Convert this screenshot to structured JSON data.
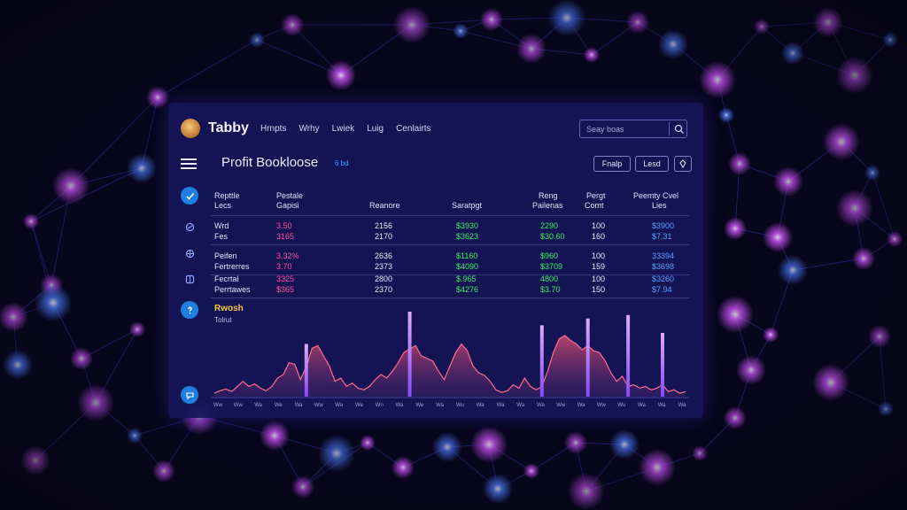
{
  "header": {
    "brand": "Tabby",
    "nav": [
      "Hrnpts",
      "Wrhy",
      "Lwiek",
      "Luig",
      "Cenlairts"
    ],
    "search_placeholder": "Seay boas"
  },
  "page": {
    "title": "Profit Bookloose",
    "title_badge": "6 bd",
    "buttons": [
      "Fnalp",
      "Lesd"
    ]
  },
  "table": {
    "columns": [
      [
        "Repttle",
        "Lecs"
      ],
      [
        "Pestale",
        "Gapisi"
      ],
      [
        "",
        "Reanore"
      ],
      [
        "",
        "Saratpgt"
      ],
      [
        "Reng",
        "Pailenas"
      ],
      [
        "Pergt",
        "Comt"
      ],
      [
        "Peemty Cvel",
        "Lies"
      ]
    ],
    "row_pairs": [
      [
        [
          "Wrd",
          "3.50",
          "2156",
          "$3930",
          "2290",
          "100",
          "$3900"
        ],
        [
          "Fes",
          "3165",
          "2170",
          "$3623",
          "$30.60",
          "160",
          "$7.31"
        ]
      ],
      [
        [
          "Peifen",
          "3.32%",
          "2636",
          "$1160",
          "$960",
          "100",
          "33394"
        ],
        [
          "Fertrerres",
          "3.70",
          "2373",
          "$4090",
          "$3709",
          "159",
          "$3698"
        ]
      ],
      [
        [
          "Fecrtal",
          "3325",
          "2800",
          "$.965",
          "4800",
          "100",
          "$3260"
        ],
        [
          "Perrtawes",
          "$365",
          "2370",
          "$4276",
          "$3.70",
          "150",
          "$7.94"
        ]
      ]
    ]
  },
  "colors": {
    "accent": "#1f7fe0",
    "label": "#e4e2fa",
    "pink": "#ff4fa0",
    "white": "#e8e8f8",
    "green": "#3cef62",
    "blue": "#5aa0ff",
    "section": "#f4c542"
  },
  "sidebar": {
    "icons": [
      "check-icon",
      "link-icon",
      "globe-icon",
      "grid-icon",
      "help-icon",
      "chat-icon"
    ]
  },
  "section": {
    "title": "Rwosh",
    "subtitle": "Tolrut"
  },
  "chart_data": {
    "type": "area",
    "x_tick_labels": [
      "Ww",
      "Ww",
      "Wa",
      "We",
      "Wa",
      "Ww",
      "Wa",
      "We",
      "Wn",
      "Wa",
      "We",
      "Wa",
      "Wu",
      "Wa",
      "Wa",
      "Wa",
      "Wa",
      "Ww",
      "Wa",
      "Ww",
      "Wu",
      "Wa",
      "Wa",
      "Wa"
    ],
    "values": [
      4,
      7,
      9,
      6,
      12,
      18,
      12,
      15,
      10,
      7,
      12,
      22,
      26,
      40,
      38,
      20,
      35,
      57,
      60,
      48,
      36,
      18,
      22,
      12,
      16,
      10,
      8,
      12,
      20,
      26,
      22,
      30,
      40,
      52,
      56,
      60,
      48,
      45,
      42,
      30,
      20,
      36,
      52,
      62,
      54,
      36,
      28,
      25,
      18,
      8,
      5,
      7,
      14,
      10,
      22,
      12,
      8,
      12,
      30,
      52,
      68,
      72,
      66,
      62,
      55,
      60,
      54,
      52,
      42,
      28,
      18,
      24,
      12,
      14,
      10,
      12,
      8,
      10,
      14,
      6,
      8,
      4,
      6
    ],
    "spikes": [
      {
        "i": 16,
        "h": 62
      },
      {
        "i": 34,
        "h": 100
      },
      {
        "i": 57,
        "h": 84
      },
      {
        "i": 65,
        "h": 92
      },
      {
        "i": 72,
        "h": 96
      },
      {
        "i": 78,
        "h": 75
      }
    ],
    "ylim": [
      0,
      100
    ]
  }
}
